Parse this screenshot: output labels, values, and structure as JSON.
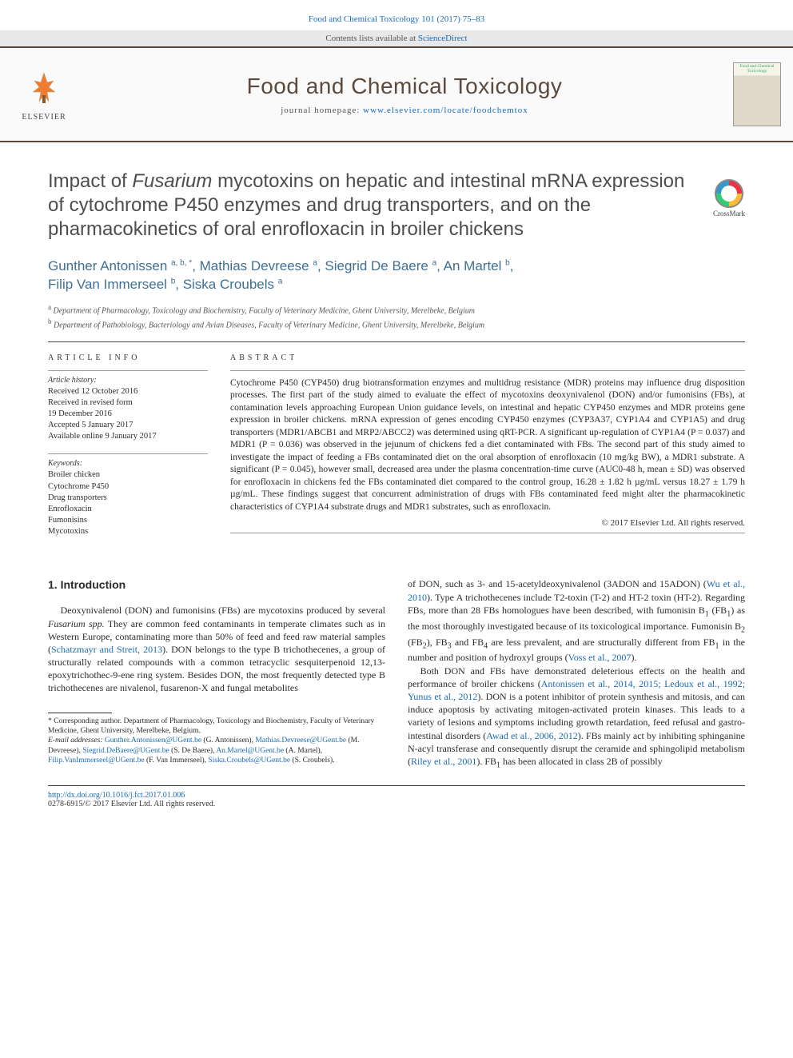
{
  "header": {
    "citation": "Food and Chemical Toxicology 101 (2017) 75–83",
    "contents_line_prefix": "Contents lists available at ",
    "contents_link": "ScienceDirect",
    "journal_name": "Food and Chemical Toxicology",
    "homepage_prefix": "journal homepage: ",
    "homepage_url": "www.elsevier.com/locate/foodchemtox",
    "publisher": "ELSEVIER"
  },
  "crossmark": {
    "label": "CrossMark"
  },
  "article": {
    "title_html": "Impact of <em>Fusarium</em> mycotoxins on hepatic and intestinal mRNA expression of cytochrome P450 enzymes and drug transporters, and on the pharmacokinetics of oral enrofloxacin in broiler chickens",
    "authors_html": "Gunther Antonissen <sup>a, b, *</sup>, Mathias Devreese <sup>a</sup>, Siegrid De Baere <sup>a</sup>, An Martel <sup>b</sup>,<br>Filip Van Immerseel <sup>b</sup>, Siska Croubels <sup>a</sup>",
    "affiliations": [
      {
        "sup": "a",
        "text": "Department of Pharmacology, Toxicology and Biochemistry, Faculty of Veterinary Medicine, Ghent University, Merelbeke, Belgium"
      },
      {
        "sup": "b",
        "text": "Department of Pathobiology, Bacteriology and Avian Diseases, Faculty of Veterinary Medicine, Ghent University, Merelbeke, Belgium"
      }
    ]
  },
  "info": {
    "heading": "ARTICLE INFO",
    "history_label": "Article history:",
    "history": [
      "Received 12 October 2016",
      "Received in revised form",
      "19 December 2016",
      "Accepted 5 January 2017",
      "Available online 9 January 2017"
    ],
    "keywords_label": "Keywords:",
    "keywords": [
      "Broiler chicken",
      "Cytochrome P450",
      "Drug transporters",
      "Enrofloxacin",
      "Fumonisins",
      "Mycotoxins"
    ]
  },
  "abstract": {
    "heading": "ABSTRACT",
    "text": "Cytochrome P450 (CYP450) drug biotransformation enzymes and multidrug resistance (MDR) proteins may influence drug disposition processes. The first part of the study aimed to evaluate the effect of mycotoxins deoxynivalenol (DON) and/or fumonisins (FBs), at contamination levels approaching European Union guidance levels, on intestinal and hepatic CYP450 enzymes and MDR proteins gene expression in broiler chickens. mRNA expression of genes encoding CYP450 enzymes (CYP3A37, CYP1A4 and CYP1A5) and drug transporters (MDR1/ABCB1 and MRP2/ABCC2) was determined using qRT-PCR. A significant up-regulation of CYP1A4 (P = 0.037) and MDR1 (P = 0.036) was observed in the jejunum of chickens fed a diet contaminated with FBs. The second part of this study aimed to investigate the impact of feeding a FBs contaminated diet on the oral absorption of enrofloxacin (10 mg/kg BW), a MDR1 substrate. A significant (P = 0.045), however small, decreased area under the plasma concentration-time curve (AUC0-48 h, mean ± SD) was observed for enrofloxacin in chickens fed the FBs contaminated diet compared to the control group, 16.28 ± 1.82 h µg/mL versus 18.27 ± 1.79 h µg/mL. These findings suggest that concurrent administration of drugs with FBs contaminated feed might alter the pharmacokinetic characteristics of CYP1A4 substrate drugs and MDR1 substrates, such as enrofloxacin.",
    "copyright": "© 2017 Elsevier Ltd. All rights reserved."
  },
  "body": {
    "section_number": "1.",
    "section_title": "Introduction",
    "left_para_html": "Deoxynivalenol (DON) and fumonisins (FBs) are mycotoxins produced by several <em>Fusarium spp.</em> They are common feed contaminants in temperate climates such as in Western Europe, contaminating more than 50% of feed and feed raw material samples (<a href='#'>Schatzmayr and Streit, 2013</a>). DON belongs to the type B trichothecenes, a group of structurally related compounds with a common tetracyclic sesquiterpenoid 12,13-epoxytrichothec-9-ene ring system. Besides DON, the most frequently detected type B trichothecenes are nivalenol, fusarenon-X and fungal metabolites",
    "right_para1_html": "of DON, such as 3- and 15-acetyldeoxynivalenol (3ADON and 15ADON) (<a href='#'>Wu et al., 2010</a>). Type A trichothecenes include T2-toxin (T-2) and HT-2 toxin (HT-2). Regarding FBs, more than 28 FBs homologues have been described, with fumonisin B<sub>1</sub> (FB<sub>1</sub>) as the most thoroughly investigated because of its toxicological importance. Fumonisin B<sub>2</sub> (FB<sub>2</sub>), FB<sub>3</sub> and FB<sub>4</sub> are less prevalent, and are structurally different from FB<sub>1</sub> in the number and position of hydroxyl groups (<a href='#'>Voss et al., 2007</a>).",
    "right_para2_html": "Both DON and FBs have demonstrated deleterious effects on the health and performance of broiler chickens (<a href='#'>Antonissen et al., 2014, 2015; Ledoux et al., 1992; Yunus et al., 2012</a>). DON is a potent inhibitor of protein synthesis and mitosis, and can induce apoptosis by activating mitogen-activated protein kinases. This leads to a variety of lesions and symptoms including growth retardation, feed refusal and gastro-intestinal disorders (<a href='#'>Awad et al., 2006, 2012</a>). FBs mainly act by inhibiting sphinganine N-acyl transferase and consequently disrupt the ceramide and sphingolipid metabolism (<a href='#'>Riley et al., 2001</a>). FB<sub>1</sub> has been allocated in class 2B of possibly"
  },
  "footnote": {
    "corr_html": "* Corresponding author. Department of Pharmacology, Toxicology and Biochemistry, Faculty of Veterinary Medicine, Ghent University, Merelbeke, Belgium.",
    "emails_label": "E-mail addresses:",
    "emails_html": "<a href='#'>Gunther.Antonissen@UGent.be</a> (G. Antonissen), <a href='#'>Mathias.Devreese@UGent.be</a> (M. Devreese), <a href='#'>Siegrid.DeBaere@UGent.be</a> (S. De Baere), <a href='#'>An.Martel@UGent.be</a> (A. Martel), <a href='#'>Filip.VanImmerseel@UGent.be</a> (F. Van Immerseel), <a href='#'>Siska.Croubels@UGent.be</a> (S. Croubels)."
  },
  "bottom": {
    "doi": "http://dx.doi.org/10.1016/j.fct.2017.01.006",
    "issn_line": "0278-6915/© 2017 Elsevier Ltd. All rights reserved."
  },
  "colors": {
    "link": "#1a6bb3",
    "banner_border": "#58483a",
    "journal_text": "#5b4a3d",
    "author_text": "#3f6f93"
  }
}
